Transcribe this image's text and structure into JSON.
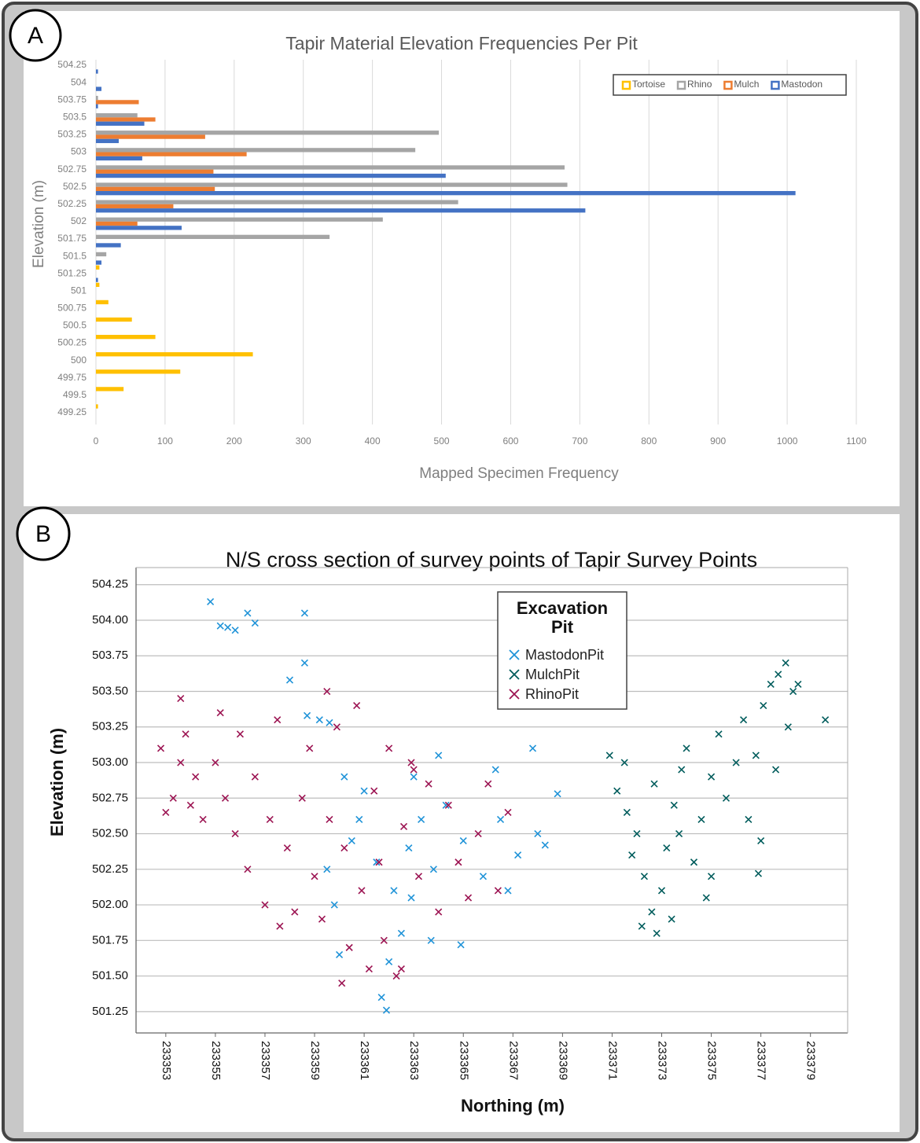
{
  "chart_data": [
    {
      "type": "bar",
      "orientation": "horizontal",
      "panel_label": "A",
      "title": "Tapir Material Elevation Frequencies Per Pit",
      "x_label": "Mapped Specimen Frequency",
      "y_label": "Elevation (m)",
      "categories": [
        "504.25",
        "504",
        "503.75",
        "503.5",
        "503.25",
        "503",
        "502.75",
        "502.5",
        "502.25",
        "502",
        "501.75",
        "501.5",
        "501.25",
        "501",
        "500.75",
        "500.5",
        "500.25",
        "500",
        "499.75",
        "499.5",
        "499.25"
      ],
      "series": [
        {
          "name": "Tortoise",
          "color": "#ffc000",
          "values": [
            0,
            0,
            0,
            0,
            0,
            0,
            0,
            0,
            0,
            0,
            0,
            0,
            5,
            5,
            18,
            52,
            86,
            227,
            122,
            40,
            3
          ]
        },
        {
          "name": "Rhino",
          "color": "#a5a5a5",
          "values": [
            0,
            0,
            3,
            60,
            496,
            462,
            678,
            682,
            524,
            415,
            338,
            15,
            0,
            0,
            0,
            0,
            0,
            0,
            0,
            0,
            0
          ]
        },
        {
          "name": "Mulch",
          "color": "#ed7d31",
          "values": [
            0,
            0,
            62,
            86,
            158,
            218,
            170,
            172,
            112,
            60,
            0,
            0,
            0,
            0,
            0,
            0,
            0,
            0,
            0,
            0,
            0
          ]
        },
        {
          "name": "Mastodon",
          "color": "#4472c4",
          "values": [
            3,
            8,
            3,
            70,
            33,
            67,
            506,
            1012,
            708,
            124,
            36,
            8,
            3,
            0,
            0,
            0,
            0,
            0,
            0,
            0,
            0
          ]
        }
      ],
      "xlim": [
        0,
        1100
      ],
      "xticks": [
        0,
        100,
        200,
        300,
        400,
        500,
        600,
        700,
        800,
        900,
        1000,
        1100
      ],
      "grid": true,
      "legend": "top-right"
    },
    {
      "type": "scatter",
      "panel_label": "B",
      "title": "N/S cross section  of survey points of Tapir Survey Points",
      "x_label": "Northing (m)",
      "y_label": "Elevation (m)",
      "legend_title": "Excavation Pit",
      "series": [
        {
          "name": "MastodonPit",
          "color": "#1f93d8",
          "x": [
            233354.8,
            233355.2,
            233355.5,
            233355.8,
            233356.3,
            233356.6,
            233358.6,
            233358.6,
            233358.0,
            233358.7,
            233359.2,
            233359.6,
            233360.2,
            233360.8,
            233361.5,
            233362.2,
            233362.8,
            233363.3,
            233363.8,
            233362.5,
            233362.0,
            233361.7,
            233361.9,
            233360.0,
            233359.8,
            233360.5,
            233363.0,
            233364.3,
            233365.0,
            233365.8,
            233366.5,
            233367.2,
            233368.0,
            233368.8,
            233367.8,
            233366.3,
            233364.9,
            233363.7,
            233362.9,
            233361.0,
            233359.5,
            233364.0,
            233366.8,
            233368.3
          ],
          "values": [
            504.13,
            503.96,
            503.95,
            503.93,
            504.05,
            503.98,
            504.05,
            503.7,
            503.58,
            503.33,
            503.3,
            503.28,
            502.9,
            502.6,
            502.3,
            502.1,
            502.4,
            502.6,
            502.25,
            501.8,
            501.6,
            501.35,
            501.26,
            501.65,
            502.0,
            502.45,
            502.9,
            502.7,
            502.45,
            502.2,
            502.6,
            502.35,
            502.5,
            502.78,
            503.1,
            502.95,
            501.72,
            501.75,
            502.05,
            502.8,
            502.25,
            503.05,
            502.1,
            502.42
          ]
        },
        {
          "name": "MulchPit",
          "color": "#005c5c",
          "x": [
            233370.9,
            233371.2,
            233371.6,
            233371.5,
            233372.0,
            233372.3,
            233372.6,
            233372.8,
            233373.0,
            233373.2,
            233373.5,
            233373.8,
            233374.0,
            233373.4,
            233372.7,
            233374.3,
            233374.6,
            233375.0,
            233375.3,
            233375.0,
            233375.6,
            233376.0,
            233376.3,
            233376.5,
            233376.8,
            233377.1,
            233377.4,
            233377.7,
            233378.0,
            233378.3,
            233378.1,
            233377.6,
            233376.9,
            233377.0,
            233379.6,
            233378.5,
            233371.8,
            233374.8,
            233372.2,
            233373.7
          ],
          "values": [
            503.05,
            502.8,
            502.65,
            503.0,
            502.5,
            502.2,
            501.95,
            501.8,
            502.1,
            502.4,
            502.7,
            502.95,
            503.1,
            501.9,
            502.85,
            502.3,
            502.6,
            502.9,
            503.2,
            502.2,
            502.75,
            503.0,
            503.3,
            502.6,
            503.05,
            503.4,
            503.55,
            503.62,
            503.7,
            503.5,
            503.25,
            502.95,
            502.22,
            502.45,
            503.3,
            503.55,
            502.35,
            502.05,
            501.85,
            502.5
          ]
        },
        {
          "name": "RhinoPit",
          "color": "#9c1452",
          "x": [
            233352.8,
            233353.0,
            233353.3,
            233353.6,
            233353.6,
            233353.8,
            233354.2,
            233354.5,
            233355.0,
            233355.4,
            233355.8,
            233356.0,
            233356.3,
            233356.6,
            233357.0,
            233357.2,
            233357.5,
            233357.9,
            233358.2,
            233358.5,
            233358.8,
            233359.0,
            233359.3,
            233359.6,
            233359.9,
            233360.2,
            233360.4,
            233360.7,
            233360.9,
            233361.2,
            233361.4,
            233361.6,
            233361.8,
            233362.0,
            233362.3,
            233362.6,
            233362.9,
            233363.2,
            233363.6,
            233364.0,
            233364.4,
            233364.8,
            233365.2,
            233365.6,
            233366.0,
            233366.4,
            233366.8,
            233359.5,
            233355.2,
            233357.6,
            233360.1,
            233362.5,
            233363.0,
            233354.0
          ],
          "values": [
            503.1,
            502.65,
            502.75,
            503.0,
            503.45,
            503.2,
            502.9,
            502.6,
            503.0,
            502.75,
            502.5,
            503.2,
            502.25,
            502.9,
            502.0,
            502.6,
            503.3,
            502.4,
            501.95,
            502.75,
            503.1,
            502.2,
            501.9,
            502.6,
            503.25,
            502.4,
            501.7,
            503.4,
            502.1,
            501.55,
            502.8,
            502.3,
            501.75,
            503.1,
            501.5,
            502.55,
            503.0,
            502.2,
            502.85,
            501.95,
            502.7,
            502.3,
            502.05,
            502.5,
            502.85,
            502.1,
            502.65,
            503.5,
            503.35,
            501.85,
            501.45,
            501.55,
            502.95,
            502.7
          ]
        }
      ],
      "xlim": [
        233351.8,
        233380.5
      ],
      "xticks": [
        233353,
        233355,
        233357,
        233359,
        233361,
        233363,
        233365,
        233367,
        233369,
        233371,
        233373,
        233375,
        233377,
        233379
      ],
      "ylim": [
        501.1,
        504.37
      ],
      "yticks": [
        501.25,
        {
          "value": 501.5,
          "label": "501.50"
        },
        501.75,
        {
          "value": 502,
          "label": "502.00"
        },
        502.25,
        {
          "value": 502.5,
          "label": "502.50"
        },
        502.75,
        {
          "value": 503,
          "label": "503.00"
        },
        503.25,
        {
          "value": 503.5,
          "label": "503.50"
        },
        503.75,
        {
          "value": 504,
          "label": "504.00"
        },
        504.25
      ],
      "grid": true,
      "legend": "top-center"
    }
  ]
}
